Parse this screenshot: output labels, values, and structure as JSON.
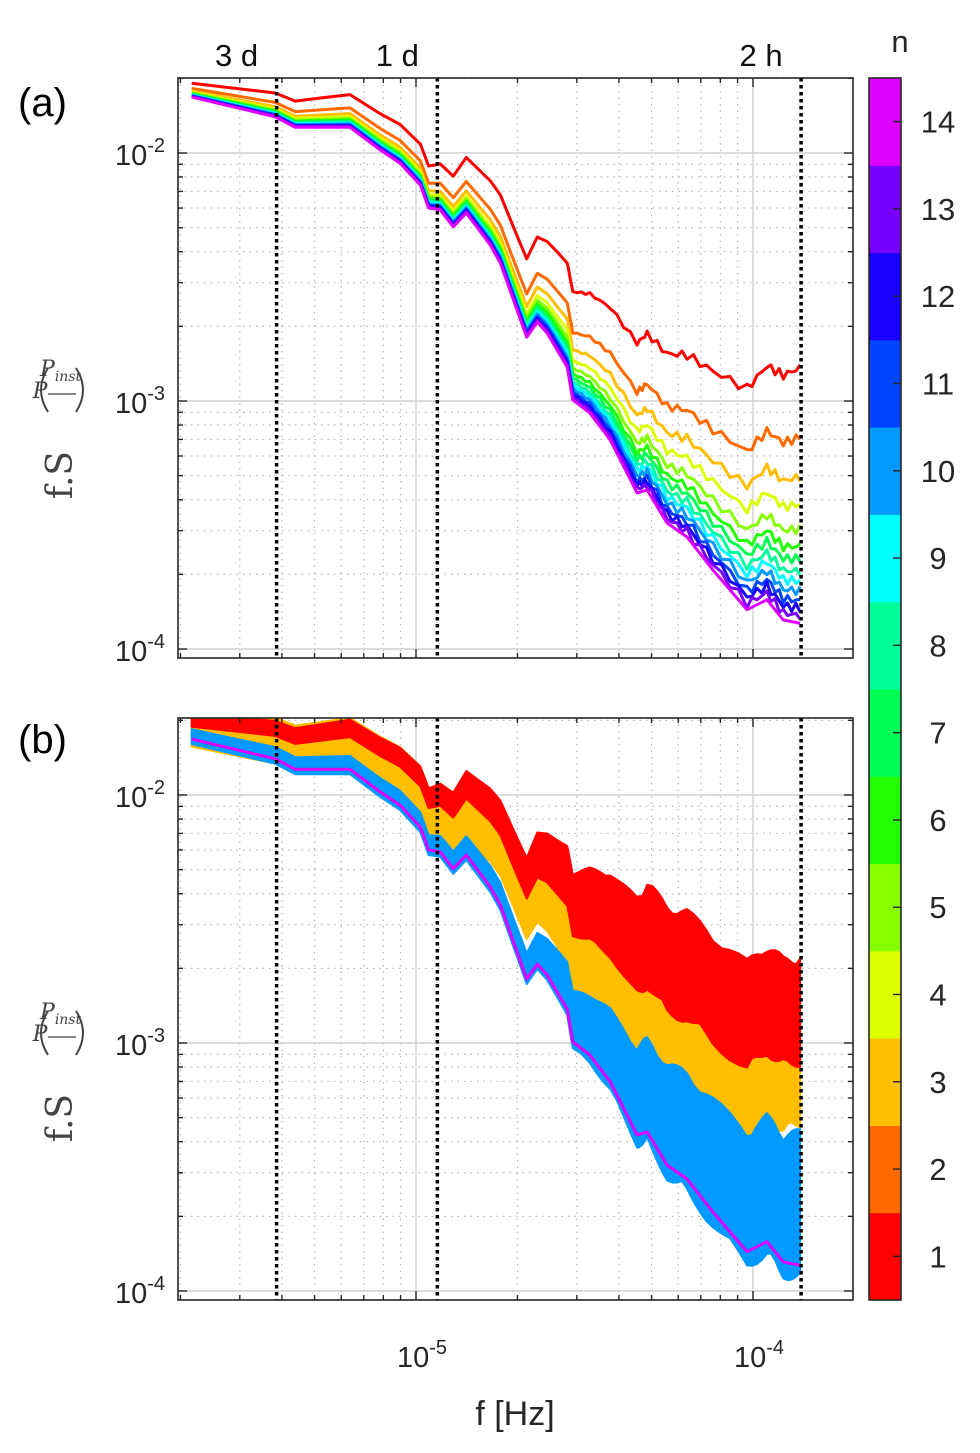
{
  "chart_data": {
    "type": "line",
    "xlabel": "f [Hz]",
    "ylabel": {
      "prefix": "f.S",
      "numerator": "P",
      "denominator": "P",
      "denominator_sub": "inst"
    },
    "xscale": "log",
    "yscale": "log",
    "xlim": [
      1.97e-06,
      0.000198
    ],
    "ylim": [
      9.2e-05,
      0.02
    ],
    "grid": true,
    "x_ticks": [
      {
        "base": "10",
        "exp": "-5",
        "value": 1e-05
      },
      {
        "base": "10",
        "exp": "-4",
        "value": 0.0001
      }
    ],
    "y_ticks": [
      {
        "base": "10",
        "exp": "-2",
        "value": 0.01
      },
      {
        "base": "10",
        "exp": "-3",
        "value": 0.001
      },
      {
        "base": "10",
        "exp": "-4",
        "value": 0.0001
      }
    ],
    "period_markers": [
      {
        "label": "3 d",
        "f": 3.858e-06
      },
      {
        "label": "1 d",
        "f": 1.157e-05
      },
      {
        "label": "2 h",
        "f": 0.0001389
      }
    ],
    "colorbar": {
      "title": "n",
      "levels": [
        1,
        2,
        3,
        4,
        5,
        6,
        7,
        8,
        9,
        10,
        11,
        12,
        13,
        14
      ],
      "colors": [
        "#ff0000",
        "#ff6a00",
        "#ffbf00",
        "#dcff00",
        "#88ff00",
        "#22ff00",
        "#00ff55",
        "#00ff9c",
        "#00ffff",
        "#0099ff",
        "#0044ff",
        "#1a00ff",
        "#7700ff",
        "#dd00ff"
      ]
    },
    "base_series_n14": {
      "f": [
        2.16e-06,
        3.82e-06,
        4.38e-06,
        6.37e-06,
        7.82e-06,
        8.97e-06,
        1.03e-05,
        1.09e-05,
        1.18e-05,
        1.29e-05,
        1.41e-05,
        1.66e-05,
        1.78e-05,
        2.13e-05,
        2.29e-05,
        2.45e-05,
        2.81e-05,
        2.92e-05,
        3.28e-05,
        3.77e-05,
        4.53e-05,
        4.85e-05,
        5.56e-05,
        6.37e-05,
        7.61e-05,
        9.6e-05,
        0.00011,
        0.000123,
        0.000138
      ],
      "values": [
        0.0168,
        0.014,
        0.0127,
        0.0127,
        0.0103,
        0.0091,
        0.00743,
        0.006,
        0.0059,
        0.00504,
        0.00573,
        0.00426,
        0.0036,
        0.00181,
        0.00208,
        0.00188,
        0.00137,
        0.00101,
        0.000895,
        0.000697,
        0.000426,
        0.000438,
        0.000322,
        0.000283,
        0.000208,
        0.000144,
        0.000158,
        0.000131,
        0.000127
      ]
    },
    "panels": [
      {
        "label": "(a)",
        "anchor_f": [
          2.16e-06,
          1.1e-05,
          2.1e-05,
          0.000138
        ],
        "series": [
          {
            "name": "n=1",
            "log10_offset_from_n14": [
              0.056,
              0.17,
              0.31,
              1.03
            ]
          },
          {
            "name": "n=2",
            "log10_offset_from_n14": [
              0.035,
              0.1,
              0.17,
              0.75
            ]
          },
          {
            "name": "n=3",
            "log10_offset_from_n14": [
              0.025,
              0.07,
              0.12,
              0.59
            ]
          },
          {
            "name": "n=4",
            "log10_offset_from_n14": [
              0.02,
              0.055,
              0.09,
              0.48
            ]
          },
          {
            "name": "n=5",
            "log10_offset_from_n14": [
              0.017,
              0.045,
              0.075,
              0.38
            ]
          },
          {
            "name": "n=6",
            "log10_offset_from_n14": [
              0.014,
              0.038,
              0.063,
              0.31
            ]
          },
          {
            "name": "n=7",
            "log10_offset_from_n14": [
              0.012,
              0.032,
              0.053,
              0.26
            ]
          },
          {
            "name": "n=8",
            "log10_offset_from_n14": [
              0.01,
              0.027,
              0.044,
              0.21
            ]
          },
          {
            "name": "n=9",
            "log10_offset_from_n14": [
              0.008,
              0.022,
              0.036,
              0.17
            ]
          },
          {
            "name": "n=10",
            "log10_offset_from_n14": [
              0.006,
              0.017,
              0.028,
              0.13
            ]
          },
          {
            "name": "n=11",
            "log10_offset_from_n14": [
              0.005,
              0.012,
              0.02,
              0.09
            ]
          },
          {
            "name": "n=12",
            "log10_offset_from_n14": [
              0.003,
              0.008,
              0.013,
              0.06
            ]
          },
          {
            "name": "n=13",
            "log10_offset_from_n14": [
              0.002,
              0.004,
              0.007,
              0.03
            ]
          },
          {
            "name": "n=14",
            "log10_offset_from_n14": [
              0,
              0,
              0,
              0
            ]
          }
        ]
      },
      {
        "label": "(b)",
        "anchor_f": [
          2.16e-06,
          1.1e-05,
          2.1e-05,
          5e-05,
          0.000138
        ],
        "bands": [
          {
            "name": "n=3 ensemble",
            "color_level": 3,
            "upper": [
              0.12,
              0.25,
              0.33,
              0.76,
              0.96
            ],
            "lower": [
              -0.03,
              0.0,
              0.16,
              0.26,
              0.6
            ]
          },
          {
            "name": "n=10 ensemble",
            "color_level": 10,
            "upper": [
              0.04,
              0.06,
              0.1,
              0.36,
              0.5
            ],
            "lower": [
              -0.02,
              -0.02,
              -0.02,
              -0.02,
              -0.02
            ]
          },
          {
            "name": "n=1 ensemble",
            "color_level": 1,
            "upper": [
              0.1,
              0.25,
              0.48,
              0.99,
              1.21
            ],
            "lower": [
              0.05,
              0.17,
              0.32,
              0.62,
              0.85
            ]
          }
        ],
        "line": {
          "name": "n=14",
          "color_level": 14
        }
      }
    ]
  }
}
